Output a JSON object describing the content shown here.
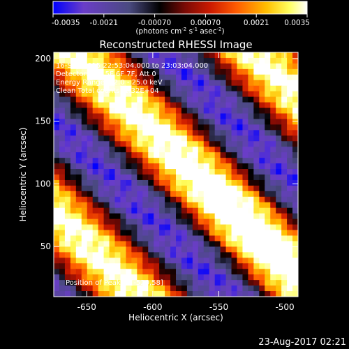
{
  "colorbar": {
    "ticks": [
      "-0.0035",
      "-0.0021",
      "-0.00070",
      "0.00070",
      "0.0021",
      "0.0035"
    ],
    "range": [
      -0.0035,
      0.0035
    ],
    "units_prefix": "(photons cm",
    "units_exp1": "-2",
    "units_mid": " s",
    "units_exp2": "-1",
    "units_mid2": " asec",
    "units_exp3": "-2",
    "units_suffix": ")",
    "colors": [
      "#0000ff",
      "#6a3dc8",
      "#4a4a80",
      "#000000",
      "#7a0a05",
      "#cc1a00",
      "#ff5a00",
      "#ffbf00",
      "#ffff60",
      "#ffffff"
    ]
  },
  "title": "Reconstructed RHESSI Image",
  "annotations": {
    "time": "16-Sep-2015 22:53:04.000 to 23:03:04.000",
    "detectors": "Detectors: 3F 5F 6F 7F, Att 0",
    "energy": "Energy Range: 12.0 - 25.0 keV",
    "clean": "Clean    Total counts: 1.32E+04",
    "peak": "Position of Peak = [-520,58]"
  },
  "footer": {
    "timestamp": "23-Aug-2017 02:21"
  },
  "chart_data": {
    "type": "heatmap",
    "title": "Reconstructed RHESSI Image",
    "xlabel": "Heliocentric X (arcsec)",
    "ylabel": "Heliocentric Y (arcsec)",
    "xlim": [
      -675,
      -490
    ],
    "ylim": [
      10,
      205
    ],
    "xticks": [
      -650,
      -600,
      -550,
      -500
    ],
    "yticks": [
      50,
      100,
      150,
      200
    ],
    "xtick_labels": [
      "-650",
      "-600",
      "-550",
      "-500"
    ],
    "ytick_labels": [
      "50",
      "100",
      "150",
      "200"
    ],
    "peak": [
      -520,
      58
    ],
    "grid": false
  }
}
